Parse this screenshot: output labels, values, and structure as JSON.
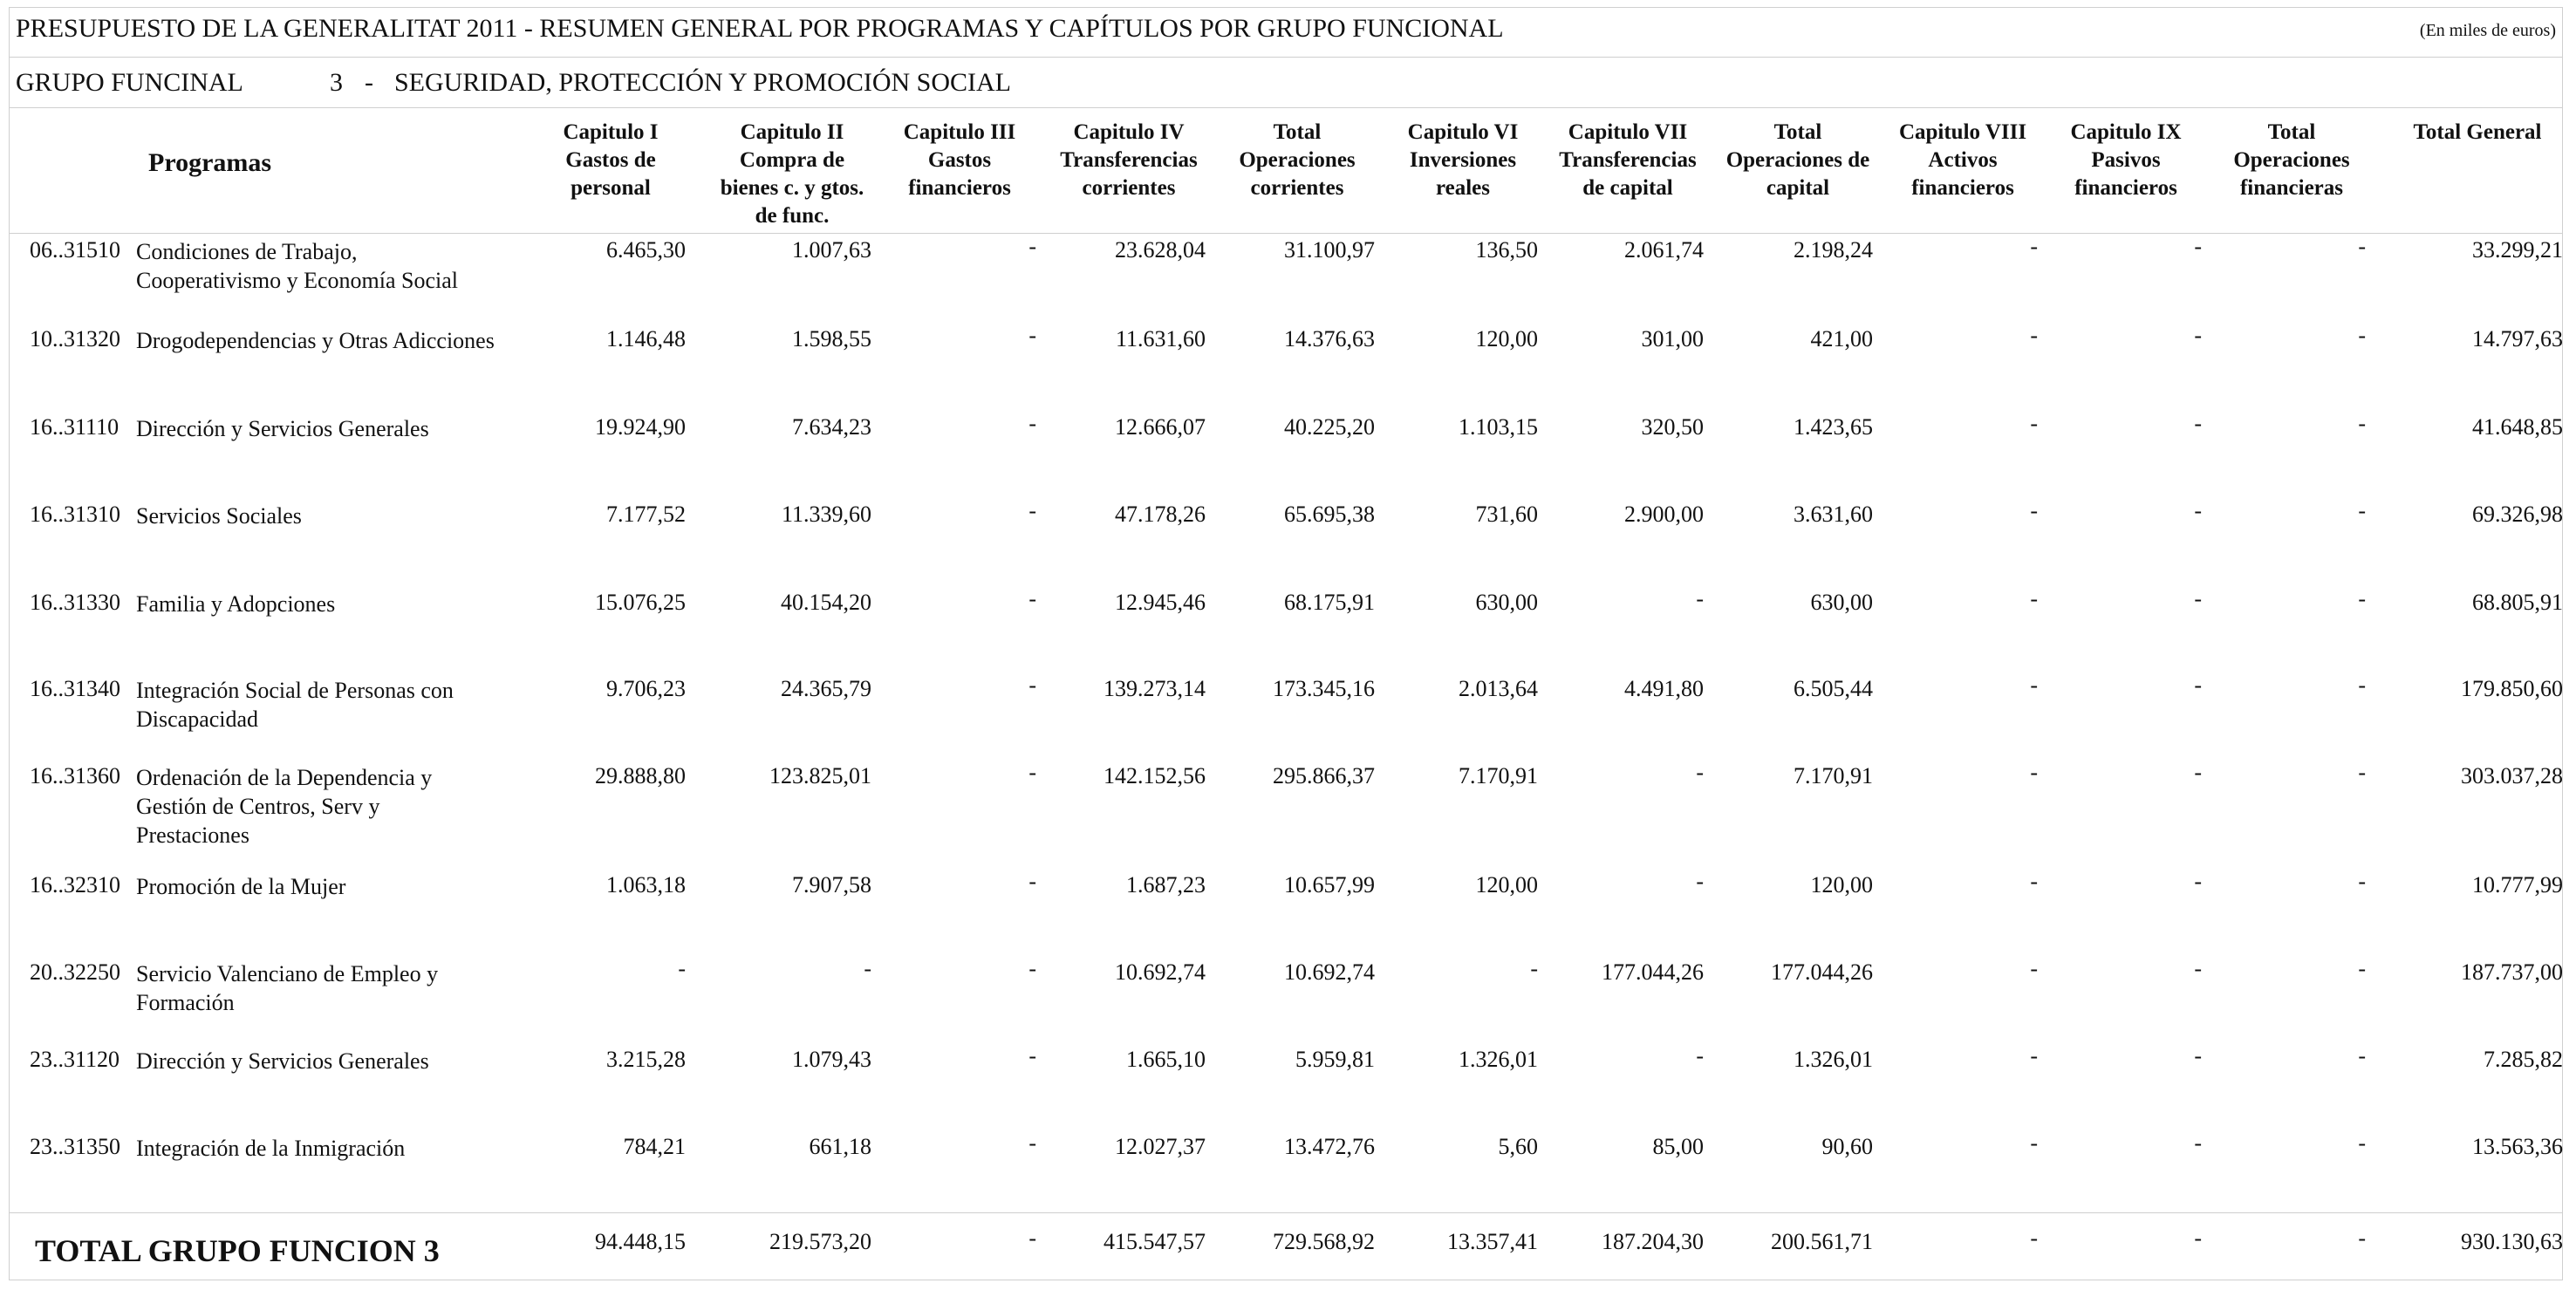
{
  "header": {
    "title": "PRESUPUESTO DE LA GENERALITAT 2011 - RESUMEN GENERAL POR PROGRAMAS Y CAPÍTULOS POR GRUPO FUNCIONAL",
    "unit_note": "(En miles de euros)"
  },
  "group": {
    "label": "GRUPO FUNCINAL",
    "number": "3",
    "separator": "-",
    "name": "SEGURIDAD, PROTECCIÓN Y PROMOCIÓN SOCIAL"
  },
  "columns": {
    "programas": "Programas",
    "headers": [
      [
        "Capitulo I",
        "Gastos de",
        "personal"
      ],
      [
        "Capitulo II",
        "Compra de",
        "bienes c. y gtos.",
        "de func."
      ],
      [
        "Capitulo III",
        "Gastos",
        "financieros"
      ],
      [
        "Capitulo IV",
        "Transferencias",
        "corrientes"
      ],
      [
        "Total",
        "Operaciones",
        "corrientes"
      ],
      [
        "Capitulo VI",
        "Inversiones",
        "reales"
      ],
      [
        "Capitulo VII",
        "Transferencias",
        "de capital"
      ],
      [
        "Total",
        "Operaciones de",
        "capital"
      ],
      [
        "Capitulo VIII",
        "Activos",
        "financieros"
      ],
      [
        "Capitulo IX",
        "Pasivos",
        "financieros"
      ],
      [
        "Total",
        "Operaciones",
        "financieras"
      ],
      [
        "Total General"
      ]
    ]
  },
  "rows": [
    {
      "code": "06..31510",
      "name": [
        "Condiciones de Trabajo,",
        "Cooperativismo y Economía Social"
      ],
      "values": [
        "6.465,30",
        "1.007,63",
        "-",
        "23.628,04",
        "31.100,97",
        "136,50",
        "2.061,74",
        "2.198,24",
        "-",
        "-",
        "-",
        "33.299,21"
      ]
    },
    {
      "code": "10..31320",
      "name": [
        "Drogodependencias y Otras Adicciones"
      ],
      "values": [
        "1.146,48",
        "1.598,55",
        "-",
        "11.631,60",
        "14.376,63",
        "120,00",
        "301,00",
        "421,00",
        "-",
        "-",
        "-",
        "14.797,63"
      ]
    },
    {
      "code": "16..31110",
      "name": [
        "Dirección y Servicios Generales"
      ],
      "values": [
        "19.924,90",
        "7.634,23",
        "-",
        "12.666,07",
        "40.225,20",
        "1.103,15",
        "320,50",
        "1.423,65",
        "-",
        "-",
        "-",
        "41.648,85"
      ]
    },
    {
      "code": "16..31310",
      "name": [
        "Servicios Sociales"
      ],
      "values": [
        "7.177,52",
        "11.339,60",
        "-",
        "47.178,26",
        "65.695,38",
        "731,60",
        "2.900,00",
        "3.631,60",
        "-",
        "-",
        "-",
        "69.326,98"
      ]
    },
    {
      "code": "16..31330",
      "name": [
        "Familia y Adopciones"
      ],
      "values": [
        "15.076,25",
        "40.154,20",
        "-",
        "12.945,46",
        "68.175,91",
        "630,00",
        "-",
        "630,00",
        "-",
        "-",
        "-",
        "68.805,91"
      ]
    },
    {
      "code": "16..31340",
      "name": [
        "Integración Social de Personas con",
        "Discapacidad"
      ],
      "values": [
        "9.706,23",
        "24.365,79",
        "-",
        "139.273,14",
        "173.345,16",
        "2.013,64",
        "4.491,80",
        "6.505,44",
        "-",
        "-",
        "-",
        "179.850,60"
      ]
    },
    {
      "code": "16..31360",
      "name": [
        "Ordenación de la Dependencia y",
        "Gestión de Centros, Serv y",
        "Prestaciones"
      ],
      "values": [
        "29.888,80",
        "123.825,01",
        "-",
        "142.152,56",
        "295.866,37",
        "7.170,91",
        "-",
        "7.170,91",
        "-",
        "-",
        "-",
        "303.037,28"
      ]
    },
    {
      "code": "16..32310",
      "name": [
        "Promoción de la Mujer"
      ],
      "values": [
        "1.063,18",
        "7.907,58",
        "-",
        "1.687,23",
        "10.657,99",
        "120,00",
        "-",
        "120,00",
        "-",
        "-",
        "-",
        "10.777,99"
      ]
    },
    {
      "code": "20..32250",
      "name": [
        "Servicio Valenciano de Empleo y",
        "Formación"
      ],
      "values": [
        "-",
        "-",
        "-",
        "10.692,74",
        "10.692,74",
        "-",
        "177.044,26",
        "177.044,26",
        "-",
        "-",
        "-",
        "187.737,00"
      ]
    },
    {
      "code": "23..31120",
      "name": [
        "Dirección y Servicios Generales"
      ],
      "values": [
        "3.215,28",
        "1.079,43",
        "-",
        "1.665,10",
        "5.959,81",
        "1.326,01",
        "-",
        "1.326,01",
        "-",
        "-",
        "-",
        "7.285,82"
      ]
    },
    {
      "code": "23..31350",
      "name": [
        "Integración de la Inmigración"
      ],
      "values": [
        "784,21",
        "661,18",
        "-",
        "12.027,37",
        "13.472,76",
        "5,60",
        "85,00",
        "90,60",
        "-",
        "-",
        "-",
        "13.563,36"
      ]
    }
  ],
  "total": {
    "label": "TOTAL GRUPO FUNCION  3",
    "values": [
      "94.448,15",
      "219.573,20",
      "-",
      "415.547,57",
      "729.568,92",
      "13.357,41",
      "187.204,30",
      "200.561,71",
      "-",
      "-",
      "-",
      "930.130,63"
    ]
  }
}
